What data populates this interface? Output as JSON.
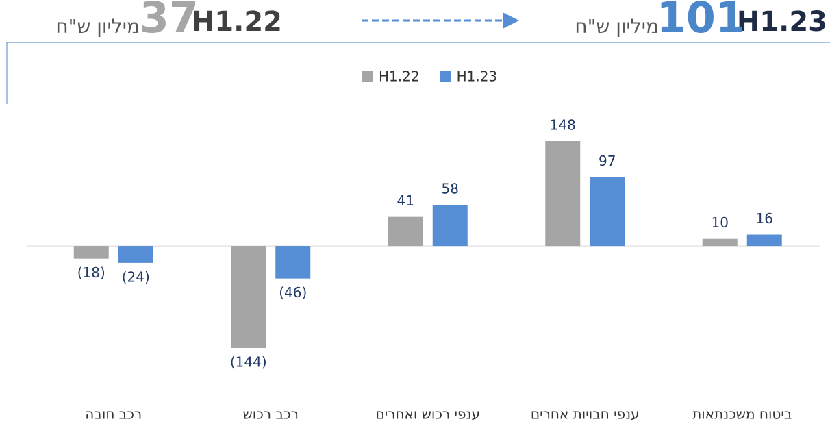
{
  "header": {
    "right": {
      "label": "H1.23",
      "value": 101,
      "unit": "מיליון ש\"ח"
    },
    "left": {
      "label": "H1.22",
      "value": 37,
      "unit": "מיליון ש\"ח"
    }
  },
  "chart_data": {
    "type": "bar",
    "categories": [
      "רכב חובה",
      "רכב רכוש",
      "ענפי רכוש ואחרים",
      "ענפי חבויות אחרים",
      "ביטוח משכנתאות"
    ],
    "series": [
      {
        "name": "H1.22",
        "color": "#a5a5a5",
        "values": [
          -18,
          -144,
          41,
          148,
          10
        ],
        "value_labels": [
          "(18)",
          "(144)",
          "41",
          "148",
          "10"
        ]
      },
      {
        "name": "H1.23",
        "color": "#558ed5",
        "values": [
          -24,
          -46,
          58,
          97,
          16
        ],
        "value_labels": [
          "(24)",
          "(46)",
          "58",
          "97",
          "16"
        ]
      }
    ]
  }
}
